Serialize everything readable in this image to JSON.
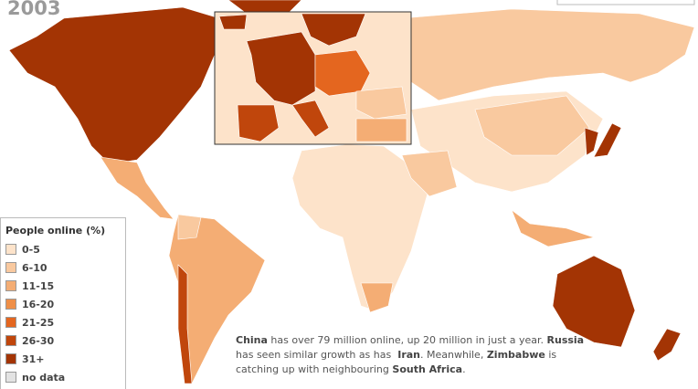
{
  "title": "2003",
  "legend": {
    "title": "People online (%)",
    "items": [
      {
        "label": "0-5",
        "color": "#fde3ca"
      },
      {
        "label": "6-10",
        "color": "#f9c99f"
      },
      {
        "label": "11-15",
        "color": "#f4ad74"
      },
      {
        "label": "16-20",
        "color": "#ef8f48"
      },
      {
        "label": "21-25",
        "color": "#e4661f"
      },
      {
        "label": "26-30",
        "color": "#c0460c"
      },
      {
        "label": "31+",
        "color": "#a33404"
      },
      {
        "label": "no data",
        "color": "#e3e3e3"
      }
    ]
  },
  "caption": {
    "segments": [
      {
        "text": "China",
        "bold": true
      },
      {
        "text": " has over 79 million online, up 20 million in just a year. ",
        "bold": false
      },
      {
        "text": "Russia",
        "bold": true
      },
      {
        "text": " has seen similar growth as has  ",
        "bold": false
      },
      {
        "text": "Iran",
        "bold": true
      },
      {
        "text": ". Meanwhile, ",
        "bold": false
      },
      {
        "text": "Zimbabwe",
        "bold": true
      },
      {
        "text": " is catching up with neighbouring ",
        "bold": false
      },
      {
        "text": "South Africa",
        "bold": true
      },
      {
        "text": ".",
        "bold": false
      }
    ]
  }
}
